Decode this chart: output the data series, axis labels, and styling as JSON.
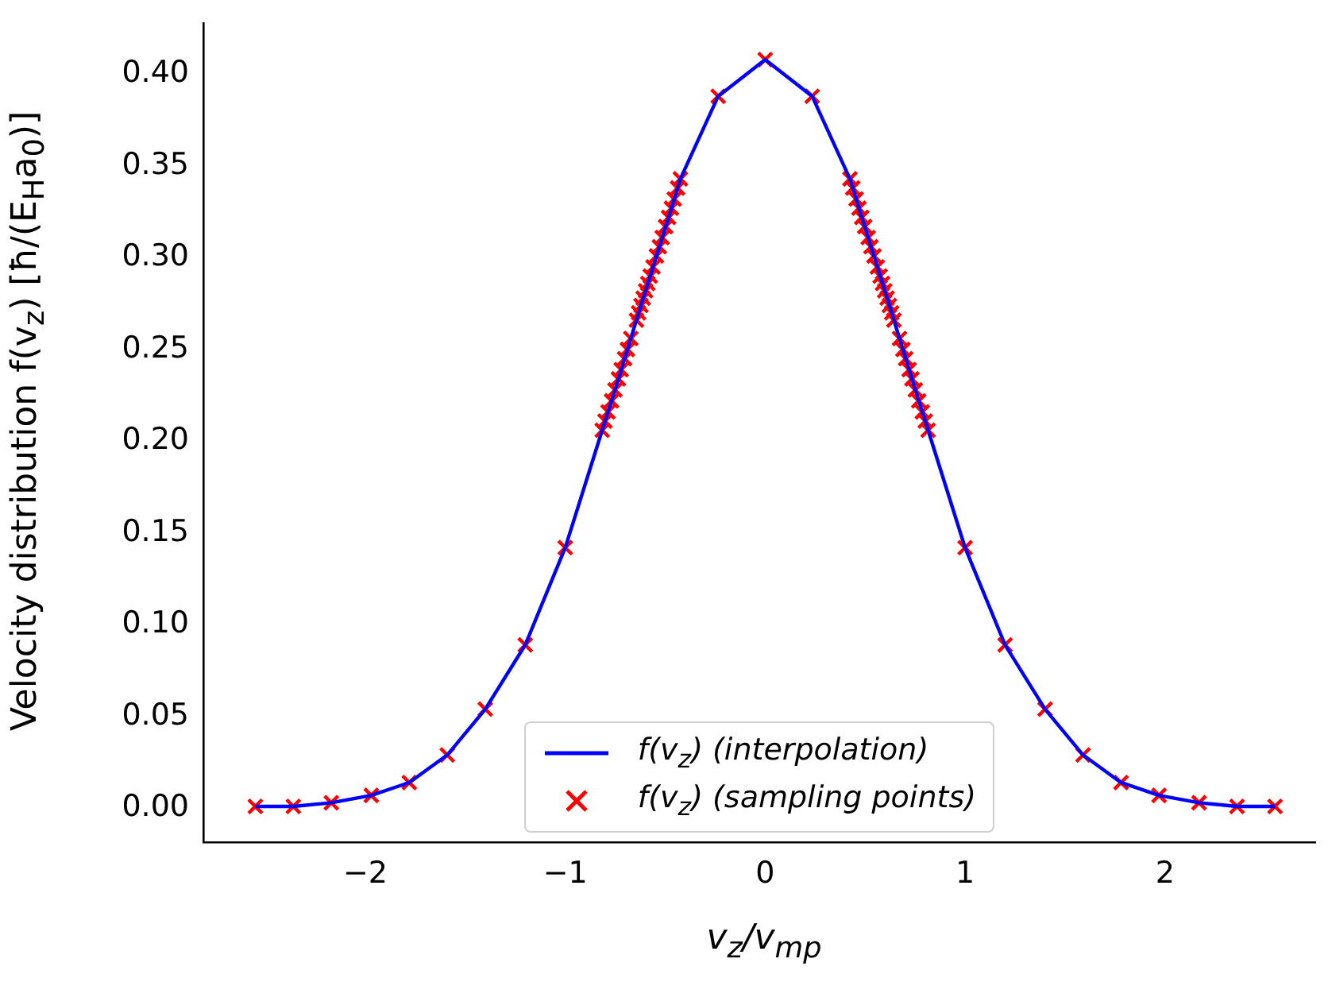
{
  "chart_data": {
    "type": "scatter",
    "xlabel": "v$_{z}$/v$_{mp}$",
    "ylabel": "Velocity distribution f(v$_{z}$) [ħ/(E$_{H}$a$_{0}$)]",
    "xlim": [
      -2.81,
      2.75
    ],
    "ylim": [
      -0.0185,
      0.428
    ],
    "xticks": [
      {
        "value": -2,
        "label": "−2"
      },
      {
        "value": -1,
        "label": "−1"
      },
      0,
      1,
      2
    ],
    "yticks": [
      {
        "value": 0,
        "label": "0.00"
      },
      {
        "value": 0.05,
        "label": "0.05"
      },
      {
        "value": 0.1,
        "label": "0.10"
      },
      {
        "value": 0.15,
        "label": "0.15"
      },
      {
        "value": 0.2,
        "label": "0.20"
      },
      {
        "value": 0.25,
        "label": "0.25"
      },
      {
        "value": 0.3,
        "label": "0.30"
      },
      {
        "value": 0.35,
        "label": "0.35"
      },
      {
        "value": 0.4,
        "label": "0.40"
      }
    ],
    "grid": false,
    "legend": "bottom",
    "series": [
      {
        "name": "f(v$_{z}$) (interpolation)",
        "type": "line",
        "color": "#0000ff",
        "marker": "none",
        "x": [
          -2.55,
          -2.36,
          -2.17,
          -1.97,
          -1.78,
          -1.59,
          -1.4,
          -1.2,
          -1.0,
          -0.815,
          -0.801,
          -0.786,
          -0.768,
          -0.751,
          -0.734,
          -0.72,
          -0.703,
          -0.689,
          -0.672,
          -0.644,
          -0.633,
          -0.621,
          -0.61,
          -0.598,
          -0.587,
          -0.575,
          -0.561,
          -0.544,
          -0.529,
          -0.515,
          -0.498,
          -0.483,
          -0.469,
          -0.455,
          -0.438,
          -0.424,
          -0.235,
          0,
          0.235,
          0.424,
          0.438,
          0.455,
          0.469,
          0.483,
          0.498,
          0.515,
          0.529,
          0.544,
          0.561,
          0.575,
          0.587,
          0.598,
          0.61,
          0.621,
          0.633,
          0.644,
          0.672,
          0.689,
          0.703,
          0.72,
          0.734,
          0.751,
          0.768,
          0.786,
          0.801,
          0.815,
          1.0,
          1.2,
          1.4,
          1.59,
          1.78,
          1.97,
          2.17,
          2.36,
          2.55
        ],
        "values": [
          0.001,
          0.001,
          0.003,
          0.007,
          0.014,
          0.029,
          0.054,
          0.089,
          0.142,
          0.206,
          0.211,
          0.216,
          0.222,
          0.228,
          0.234,
          0.239,
          0.245,
          0.25,
          0.256,
          0.266,
          0.27,
          0.274,
          0.278,
          0.282,
          0.286,
          0.29,
          0.295,
          0.301,
          0.306,
          0.311,
          0.317,
          0.322,
          0.327,
          0.332,
          0.338,
          0.343,
          0.388,
          0.408,
          0.388,
          0.343,
          0.338,
          0.332,
          0.327,
          0.322,
          0.317,
          0.311,
          0.306,
          0.301,
          0.295,
          0.29,
          0.286,
          0.282,
          0.278,
          0.274,
          0.27,
          0.266,
          0.256,
          0.25,
          0.245,
          0.239,
          0.234,
          0.228,
          0.222,
          0.216,
          0.211,
          0.206,
          0.142,
          0.089,
          0.054,
          0.029,
          0.014,
          0.007,
          0.003,
          0.001,
          0.001
        ]
      },
      {
        "name": "f(v$_{z}$) (sampling points)",
        "color": "#ff0000",
        "marker": "cross",
        "x": [
          -2.55,
          -2.36,
          -2.17,
          -1.97,
          -1.78,
          -1.59,
          -1.4,
          -1.2,
          -1.0,
          -0.815,
          -0.801,
          -0.786,
          -0.768,
          -0.751,
          -0.734,
          -0.72,
          -0.703,
          -0.689,
          -0.672,
          -0.644,
          -0.633,
          -0.621,
          -0.61,
          -0.598,
          -0.587,
          -0.575,
          -0.561,
          -0.544,
          -0.529,
          -0.515,
          -0.498,
          -0.483,
          -0.469,
          -0.455,
          -0.438,
          -0.424,
          -0.235,
          0,
          0.235,
          0.424,
          0.438,
          0.455,
          0.469,
          0.483,
          0.498,
          0.515,
          0.529,
          0.544,
          0.561,
          0.575,
          0.587,
          0.598,
          0.61,
          0.621,
          0.633,
          0.644,
          0.672,
          0.689,
          0.703,
          0.72,
          0.734,
          0.751,
          0.768,
          0.786,
          0.801,
          0.815,
          1.0,
          1.2,
          1.4,
          1.59,
          1.78,
          1.97,
          2.17,
          2.36,
          2.55
        ],
        "values": [
          0.001,
          0.001,
          0.003,
          0.007,
          0.014,
          0.029,
          0.054,
          0.089,
          0.142,
          0.206,
          0.211,
          0.216,
          0.222,
          0.228,
          0.234,
          0.239,
          0.245,
          0.25,
          0.256,
          0.266,
          0.27,
          0.274,
          0.278,
          0.282,
          0.286,
          0.29,
          0.295,
          0.301,
          0.306,
          0.311,
          0.317,
          0.322,
          0.327,
          0.332,
          0.338,
          0.343,
          0.388,
          0.408,
          0.388,
          0.343,
          0.338,
          0.332,
          0.327,
          0.322,
          0.317,
          0.311,
          0.306,
          0.301,
          0.295,
          0.29,
          0.286,
          0.282,
          0.278,
          0.274,
          0.27,
          0.266,
          0.256,
          0.25,
          0.245,
          0.239,
          0.234,
          0.228,
          0.222,
          0.216,
          0.211,
          0.206,
          0.142,
          0.089,
          0.054,
          0.029,
          0.014,
          0.007,
          0.003,
          0.001,
          0.001
        ]
      }
    ]
  }
}
